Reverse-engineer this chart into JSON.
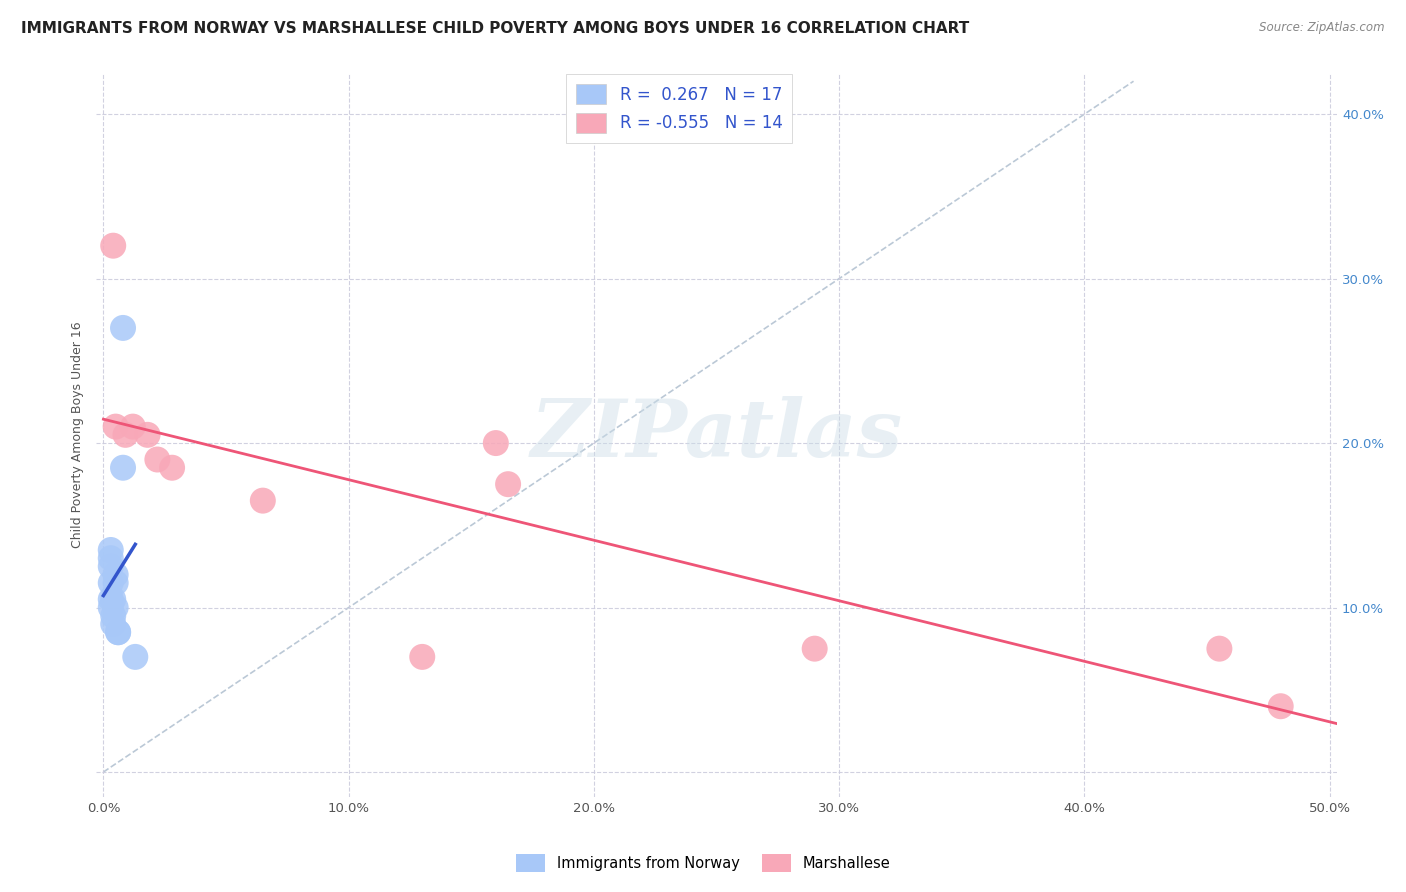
{
  "title": "IMMIGRANTS FROM NORWAY VS MARSHALLESE CHILD POVERTY AMONG BOYS UNDER 16 CORRELATION CHART",
  "source": "Source: ZipAtlas.com",
  "ylabel": "Child Poverty Among Boys Under 16",
  "xlim": [
    -0.003,
    0.503
  ],
  "ylim": [
    -0.015,
    0.425
  ],
  "xticks": [
    0.0,
    0.1,
    0.2,
    0.3,
    0.4,
    0.5
  ],
  "xtick_labels": [
    "0.0%",
    "10.0%",
    "20.0%",
    "30.0%",
    "40.0%",
    "50.0%"
  ],
  "yticks": [
    0.0,
    0.1,
    0.2,
    0.3,
    0.4
  ],
  "ytick_labels_left": [
    "",
    "",
    "",
    "",
    ""
  ],
  "ytick_labels_right": [
    "",
    "10.0%",
    "20.0%",
    "30.0%",
    "40.0%"
  ],
  "norway_x": [
    0.003,
    0.003,
    0.003,
    0.003,
    0.003,
    0.003,
    0.004,
    0.004,
    0.004,
    0.005,
    0.005,
    0.005,
    0.006,
    0.006,
    0.008,
    0.008,
    0.013
  ],
  "norway_y": [
    0.125,
    0.13,
    0.135,
    0.1,
    0.105,
    0.115,
    0.09,
    0.095,
    0.105,
    0.1,
    0.12,
    0.115,
    0.085,
    0.085,
    0.27,
    0.185,
    0.07
  ],
  "marshallese_x": [
    0.004,
    0.005,
    0.009,
    0.012,
    0.018,
    0.022,
    0.028,
    0.065,
    0.13,
    0.16,
    0.165,
    0.29,
    0.455,
    0.48
  ],
  "marshallese_y": [
    0.32,
    0.21,
    0.205,
    0.21,
    0.205,
    0.19,
    0.185,
    0.165,
    0.07,
    0.2,
    0.175,
    0.075,
    0.075,
    0.04
  ],
  "norway_color": "#a8c8f8",
  "marshallese_color": "#f8a8b8",
  "norway_R": 0.267,
  "norway_N": 17,
  "marshallese_R": -0.555,
  "marshallese_N": 14,
  "norway_line_color": "#3355cc",
  "marshallese_line_color": "#ee5577",
  "diagonal_color": "#aabbcc",
  "background_color": "#ffffff",
  "grid_color": "#ccccdd",
  "watermark_color": "#ccdde8",
  "title_color": "#222222",
  "source_color": "#888888",
  "ylabel_color": "#555555",
  "tick_color_right": "#4488cc",
  "tick_color_bottom": "#555555"
}
